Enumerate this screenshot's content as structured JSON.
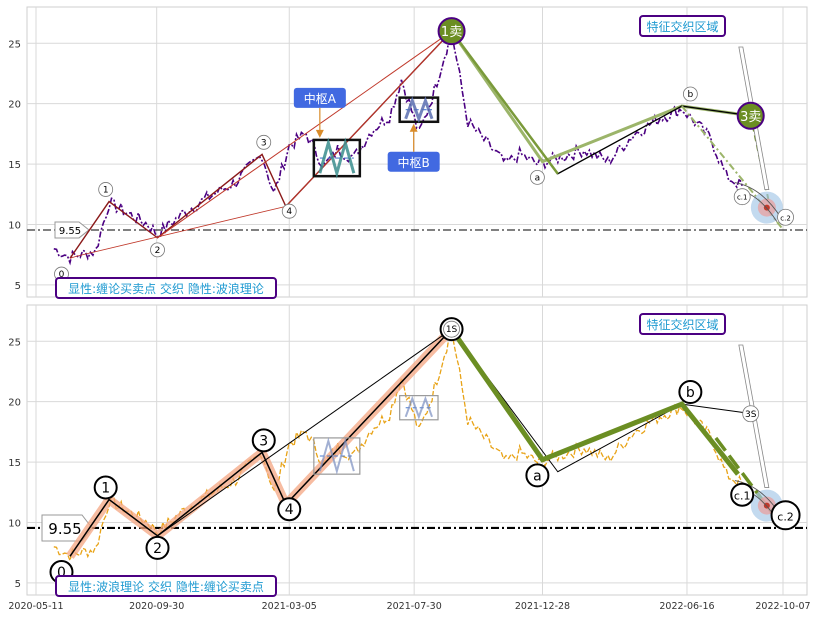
{
  "chart_data": [
    {
      "type": "line",
      "panel": "top",
      "ylim": [
        4,
        28
      ],
      "y_ticks": [
        5,
        10,
        15,
        20,
        25
      ],
      "grid": true,
      "reference_line": {
        "y": 9.55,
        "label": "9.55"
      },
      "title_box": "显性:缠论买卖点 交织 隐性:波浪理论",
      "region_label": "特征交织区域",
      "zhongshu": [
        {
          "label": "中枢A",
          "x": [
            "2021-04-10",
            "2021-05-20"
          ],
          "y": [
            14,
            17
          ]
        },
        {
          "label": "中枢B",
          "x": [
            "2021-07-20",
            "2021-08-20"
          ],
          "y": [
            18.5,
            20.5
          ]
        }
      ],
      "sell_points": [
        {
          "label": "1卖",
          "x": "2021-09-12",
          "y": 26
        },
        {
          "label": "3卖",
          "x": "2022-08-30",
          "y": 19
        }
      ],
      "wave_labels": [
        {
          "label": "0",
          "x": "2020-06-10",
          "y": 5.9
        },
        {
          "label": "1",
          "x": "2020-08-01",
          "y": 12.9
        },
        {
          "label": "2",
          "x": "2020-10-01",
          "y": 7.9
        },
        {
          "label": "3",
          "x": "2021-02-03",
          "y": 16.8
        },
        {
          "label": "4",
          "x": "2021-03-05",
          "y": 11.1
        },
        {
          "label": "a",
          "x": "2021-12-22",
          "y": 13.9
        },
        {
          "label": "b",
          "x": "2022-06-20",
          "y": 20.8
        },
        {
          "label": "c.1",
          "x": "2022-08-20",
          "y": 12.3
        },
        {
          "label": "c.2",
          "x": "2022-10-10",
          "y": 10.6
        }
      ],
      "price_series": {
        "x": [
          "2020-06-01",
          "2020-06-20",
          "2020-07-20",
          "2020-08-05",
          "2020-08-25",
          "2020-09-20",
          "2020-10-01",
          "2020-11-01",
          "2020-12-01",
          "2021-01-01",
          "2021-02-01",
          "2021-02-15",
          "2021-03-05",
          "2021-03-25",
          "2021-04-15",
          "2021-05-01",
          "2021-05-20",
          "2021-06-10",
          "2021-07-01",
          "2021-07-15",
          "2021-08-05",
          "2021-08-20",
          "2021-09-12",
          "2021-10-01",
          "2021-10-20",
          "2021-11-15",
          "2021-12-01",
          "2021-12-22",
          "2022-01-15",
          "2022-02-15",
          "2022-03-15",
          "2022-04-15",
          "2022-05-15",
          "2022-06-10",
          "2022-06-25",
          "2022-07-15",
          "2022-08-01",
          "2022-08-20"
        ],
        "y": [
          8.0,
          7.3,
          7.8,
          11.8,
          11.0,
          10.0,
          9.2,
          11.0,
          12.3,
          13.5,
          15.8,
          12.5,
          16.5,
          17.5,
          14.8,
          16.2,
          15.5,
          17.8,
          19.0,
          22.0,
          17.5,
          20.5,
          26.0,
          18.5,
          17.0,
          15.0,
          15.8,
          15.0,
          15.5,
          16.2,
          15.2,
          17.5,
          18.8,
          19.6,
          18.5,
          17.0,
          14.0,
          13.2
        ]
      }
    },
    {
      "type": "line",
      "panel": "bottom",
      "ylim": [
        4,
        28
      ],
      "y_ticks": [
        5,
        10,
        15,
        20,
        25
      ],
      "grid": true,
      "reference_line": {
        "y": 9.55,
        "label": "9.55"
      },
      "title_box": "显性:波浪理论 交织 隐性:缠论买卖点",
      "region_label": "特征交织区域",
      "sell_points": [
        {
          "label": "1S",
          "x": "2021-09-12",
          "y": 26
        },
        {
          "label": "3S",
          "x": "2022-08-30",
          "y": 19
        }
      ],
      "wave_labels": [
        {
          "label": "0",
          "x": "2020-06-10",
          "y": 5.9
        },
        {
          "label": "1",
          "x": "2020-08-01",
          "y": 12.9
        },
        {
          "label": "2",
          "x": "2020-10-01",
          "y": 7.9
        },
        {
          "label": "3",
          "x": "2021-02-03",
          "y": 16.8
        },
        {
          "label": "4",
          "x": "2021-03-05",
          "y": 11.1
        },
        {
          "label": "5",
          "x": "2021-09-12",
          "y": 26
        },
        {
          "label": "a",
          "x": "2021-12-22",
          "y": 13.9
        },
        {
          "label": "b",
          "x": "2022-06-20",
          "y": 20.8
        },
        {
          "label": "c.1",
          "x": "2022-08-20",
          "y": 12.3
        },
        {
          "label": "c.2",
          "x": "2022-10-10",
          "y": 10.6
        }
      ]
    }
  ],
  "x_axis": {
    "ticks": [
      "2020-05-11",
      "2020-09-30",
      "2021-03-05",
      "2021-07-30",
      "2021-12-28",
      "2022-06-16",
      "2022-10-07"
    ]
  },
  "colors": {
    "price_top": "#4b0082",
    "price_bottom": "#e8a317",
    "sell_point": "#6b8e23",
    "zhongshu_label": "#4169e1",
    "box_border": "#4b0082",
    "box_text": "#1f9ad1",
    "wave_highlight": "#f4a582"
  }
}
